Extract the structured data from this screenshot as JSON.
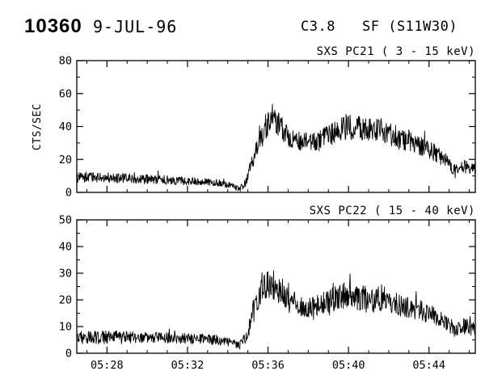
{
  "header": {
    "event_number": "10360",
    "date": "9-JUL-96",
    "goes_class": "C3.8",
    "flare": "SF (S11W30)"
  },
  "colors": {
    "background": "#ffffff",
    "foreground": "#000000"
  },
  "chart_data": [
    {
      "type": "line",
      "title": "SXS PC21 ( 3 - 15 keV)",
      "ylabel": "CTS/SEC",
      "xlabel": "",
      "ylim": [
        0,
        80
      ],
      "yticks": [
        0,
        20,
        40,
        60,
        80
      ],
      "y_minor_step": 10,
      "x_minutes_lim": [
        26.5,
        46.3
      ],
      "xticks": [
        {
          "value": 28,
          "label": "05:28"
        },
        {
          "value": 32,
          "label": "05:32"
        },
        {
          "value": 36,
          "label": "05:36"
        },
        {
          "value": 40,
          "label": "05:40"
        },
        {
          "value": 44,
          "label": "05:44"
        }
      ],
      "x_minor_step": 1,
      "grid": false,
      "legend": false,
      "line_color": "#000000",
      "series": [
        {
          "name": "SXS PC21 counts",
          "units": "CTS/SEC",
          "noise_model": "uniform",
          "keypoints_time_mean_noise": [
            [
              26.5,
              9,
              3
            ],
            [
              28,
              9,
              3
            ],
            [
              30,
              8,
              3
            ],
            [
              32,
              7,
              2.5
            ],
            [
              33.5,
              6,
              2
            ],
            [
              34.2,
              4,
              2
            ],
            [
              34.6,
              2,
              1.5
            ],
            [
              34.9,
              6,
              2.5
            ],
            [
              35.2,
              18,
              5
            ],
            [
              35.5,
              30,
              6
            ],
            [
              35.9,
              38,
              7
            ],
            [
              36.2,
              45,
              9
            ],
            [
              36.5,
              42,
              8
            ],
            [
              37,
              34,
              6
            ],
            [
              37.5,
              31,
              6
            ],
            [
              38,
              30,
              6
            ],
            [
              38.5,
              31,
              6
            ],
            [
              39,
              34,
              7
            ],
            [
              39.5,
              38,
              8
            ],
            [
              40,
              40,
              8
            ],
            [
              40.5,
              39,
              8
            ],
            [
              41,
              38,
              7
            ],
            [
              41.5,
              38,
              8
            ],
            [
              42,
              36,
              7
            ],
            [
              42.5,
              33,
              7
            ],
            [
              43,
              31,
              6
            ],
            [
              43.5,
              28,
              6
            ],
            [
              44,
              26,
              6
            ],
            [
              44.5,
              22,
              5
            ],
            [
              45,
              18,
              4
            ],
            [
              45.3,
              12,
              4
            ],
            [
              45.6,
              16,
              4
            ],
            [
              46,
              15,
              4
            ],
            [
              46.3,
              14,
              3
            ]
          ]
        }
      ]
    },
    {
      "type": "line",
      "title": "SXS PC22 ( 15 - 40 keV)",
      "ylabel": "",
      "xlabel": "",
      "ylim": [
        0,
        50
      ],
      "yticks": [
        0,
        10,
        20,
        30,
        40,
        50
      ],
      "y_minor_step": 5,
      "x_minutes_lim": [
        26.5,
        46.3
      ],
      "xticks": [
        {
          "value": 28,
          "label": "05:28"
        },
        {
          "value": 32,
          "label": "05:32"
        },
        {
          "value": 36,
          "label": "05:36"
        },
        {
          "value": 40,
          "label": "05:40"
        },
        {
          "value": 44,
          "label": "05:44"
        }
      ],
      "x_minor_step": 1,
      "grid": false,
      "legend": false,
      "line_color": "#000000",
      "series": [
        {
          "name": "SXS PC22 counts",
          "units": "CTS/SEC",
          "noise_model": "uniform",
          "keypoints_time_mean_noise": [
            [
              26.5,
              6,
              2.5
            ],
            [
              28,
              6,
              2.5
            ],
            [
              30,
              6,
              2
            ],
            [
              32,
              5.5,
              2
            ],
            [
              33.5,
              5,
              2
            ],
            [
              34.2,
              4,
              1.5
            ],
            [
              34.6,
              3,
              1.5
            ],
            [
              34.9,
              6,
              2
            ],
            [
              35.2,
              13,
              4
            ],
            [
              35.5,
              21,
              5
            ],
            [
              35.9,
              25,
              6
            ],
            [
              36.2,
              26,
              6
            ],
            [
              36.5,
              24,
              5
            ],
            [
              37,
              20,
              5
            ],
            [
              37.5,
              18,
              4
            ],
            [
              38,
              17,
              4
            ],
            [
              38.5,
              18,
              4
            ],
            [
              39,
              19,
              5
            ],
            [
              39.5,
              21,
              5
            ],
            [
              40,
              22,
              5
            ],
            [
              40.5,
              21,
              5
            ],
            [
              41,
              20,
              5
            ],
            [
              41.5,
              20,
              5
            ],
            [
              42,
              19,
              4
            ],
            [
              42.5,
              18,
              4
            ],
            [
              43,
              17,
              4
            ],
            [
              43.5,
              16,
              4
            ],
            [
              44,
              15,
              4
            ],
            [
              44.5,
              13,
              3
            ],
            [
              45,
              11,
              3
            ],
            [
              45.3,
              8,
              3
            ],
            [
              45.6,
              10,
              3
            ],
            [
              46,
              10,
              3
            ],
            [
              46.3,
              9,
              3
            ]
          ]
        }
      ]
    }
  ]
}
